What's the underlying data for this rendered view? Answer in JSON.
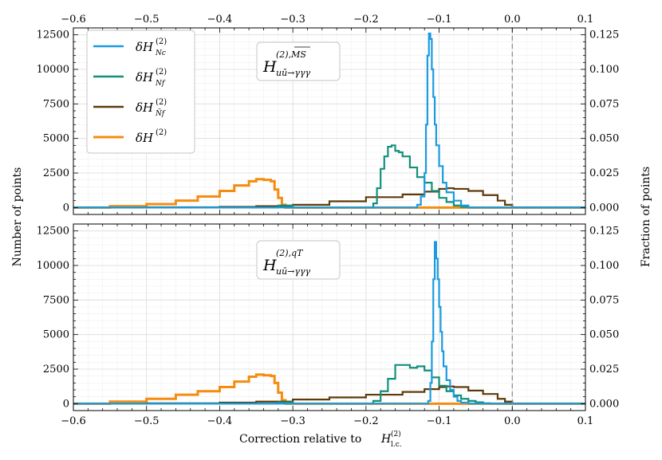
{
  "chart_data": {
    "type": "histogram",
    "xlabel": "Correction relative to H_l.c.^(2)",
    "xlabel_main": "Correction relative to ",
    "xlabel_sym": "H",
    "xlabel_sub": "l.c.",
    "xlabel_sup": "(2)",
    "ylabel": "Number of points",
    "ylabel_right": "Fraction of points",
    "xlim": [
      -0.6,
      0.1
    ],
    "x_ticks": [
      "−0.6",
      "−0.5",
      "−0.4",
      "−0.3",
      "−0.2",
      "−0.1",
      "0.0",
      "0.1"
    ],
    "x_tick_values": [
      -0.6,
      -0.5,
      -0.4,
      -0.3,
      -0.2,
      -0.1,
      0.0,
      0.1
    ],
    "ylim": [
      -500,
      13000
    ],
    "y_ticks": [
      "0",
      "2500",
      "5000",
      "7500",
      "10000",
      "12500"
    ],
    "y_tick_values": [
      0,
      2500,
      5000,
      7500,
      10000,
      12500
    ],
    "y_right_ticks": [
      "0.000",
      "0.025",
      "0.050",
      "0.075",
      "0.100",
      "0.125"
    ],
    "reference_line_x": 0.0,
    "legend": [
      {
        "key": "Nc",
        "label_main": "δH",
        "label_sup": "(2)",
        "label_sub": "Nc",
        "color": "#1a9be0"
      },
      {
        "key": "Nf",
        "label_main": "δH",
        "label_sup": "(2)",
        "label_sub": "Nf",
        "color": "#12907c"
      },
      {
        "key": "Nft",
        "label_main": "δH",
        "label_sup": "(2)",
        "label_sub": "Ñf",
        "color": "#5e3a0a"
      },
      {
        "key": "total",
        "label_main": "δH",
        "label_sup": "(2)",
        "label_sub": "",
        "color": "#f58c0f"
      }
    ],
    "panels": [
      {
        "name": "top",
        "annotation": {
          "main": "H",
          "sup": "(2),MS",
          "sub": "uū→γγγ"
        },
        "series": [
          {
            "key": "total",
            "name": "δH(2)",
            "x": [
              -0.6,
              -0.55,
              -0.5,
              -0.46,
              -0.43,
              -0.4,
              -0.38,
              -0.36,
              -0.35,
              -0.34,
              -0.33,
              -0.325,
              -0.32,
              -0.315,
              -0.31,
              -0.3,
              0.1
            ],
            "y": [
              0,
              100,
              250,
              500,
              800,
              1200,
              1600,
              1900,
              2050,
              2000,
              1900,
              1300,
              700,
              200,
              0,
              0,
              0
            ]
          },
          {
            "key": "Nft",
            "name": "δH(2) Ñf",
            "x": [
              -0.6,
              -0.5,
              -0.4,
              -0.35,
              -0.3,
              -0.25,
              -0.2,
              -0.15,
              -0.12,
              -0.1,
              -0.09,
              -0.08,
              -0.06,
              -0.04,
              -0.02,
              -0.01,
              0.0,
              0.1
            ],
            "y": [
              0,
              20,
              50,
              100,
              200,
              450,
              750,
              950,
              1150,
              1350,
              1400,
              1350,
              1200,
              900,
              500,
              200,
              0,
              0
            ]
          },
          {
            "key": "Nf",
            "name": "δH(2) Nf",
            "x": [
              -0.6,
              -0.35,
              -0.32,
              -0.3,
              -0.2,
              -0.19,
              -0.185,
              -0.18,
              -0.175,
              -0.17,
              -0.165,
              -0.16,
              -0.155,
              -0.15,
              -0.14,
              -0.13,
              -0.12,
              -0.11,
              -0.1,
              -0.09,
              -0.08,
              -0.07,
              -0.06,
              0.1
            ],
            "y": [
              0,
              0,
              150,
              0,
              0,
              300,
              1400,
              2800,
              3700,
              4400,
              4500,
              4100,
              4000,
              3700,
              2900,
              2200,
              1800,
              1200,
              700,
              400,
              150,
              50,
              0,
              0
            ]
          },
          {
            "key": "Nc",
            "name": "δH(2) Nc",
            "x": [
              -0.6,
              -0.14,
              -0.13,
              -0.125,
              -0.12,
              -0.118,
              -0.116,
              -0.114,
              -0.112,
              -0.11,
              -0.108,
              -0.106,
              -0.104,
              -0.1,
              -0.095,
              -0.09,
              -0.08,
              -0.07,
              -0.06,
              0.1
            ],
            "y": [
              0,
              0,
              200,
              800,
              2500,
              6000,
              11000,
              12600,
              12200,
              10000,
              8000,
              6000,
              4500,
              3000,
              1800,
              1100,
              500,
              150,
              0,
              0
            ]
          }
        ]
      },
      {
        "name": "bottom",
        "annotation": {
          "main": "H",
          "sup": "(2),qT",
          "sub": "uū→γγγ"
        },
        "series": [
          {
            "key": "total",
            "name": "δH(2)",
            "x": [
              -0.6,
              -0.55,
              -0.5,
              -0.46,
              -0.43,
              -0.4,
              -0.38,
              -0.36,
              -0.35,
              -0.34,
              -0.33,
              -0.325,
              -0.32,
              -0.315,
              -0.31,
              -0.3,
              0.1
            ],
            "y": [
              0,
              150,
              350,
              650,
              900,
              1200,
              1600,
              1950,
              2100,
              2050,
              2000,
              1500,
              800,
              250,
              0,
              0,
              0
            ]
          },
          {
            "key": "Nft",
            "name": "δH(2) Ñf",
            "x": [
              -0.6,
              -0.5,
              -0.4,
              -0.35,
              -0.3,
              -0.25,
              -0.2,
              -0.15,
              -0.12,
              -0.1,
              -0.09,
              -0.08,
              -0.06,
              -0.04,
              -0.02,
              -0.01,
              0.0,
              0.1
            ],
            "y": [
              0,
              30,
              80,
              150,
              300,
              450,
              650,
              850,
              1050,
              1200,
              1250,
              1200,
              950,
              700,
              350,
              150,
              0,
              0
            ]
          },
          {
            "key": "Nf",
            "name": "δH(2) Nf",
            "x": [
              -0.6,
              -0.35,
              -0.32,
              -0.3,
              -0.2,
              -0.19,
              -0.18,
              -0.17,
              -0.16,
              -0.15,
              -0.14,
              -0.13,
              -0.12,
              -0.11,
              -0.1,
              -0.09,
              -0.08,
              -0.07,
              -0.06,
              -0.05,
              -0.04,
              -0.03,
              0.1
            ],
            "y": [
              0,
              0,
              100,
              0,
              0,
              200,
              900,
              1800,
              2800,
              2800,
              2600,
              2700,
              2400,
              1900,
              1300,
              900,
              600,
              350,
              200,
              100,
              30,
              0,
              0
            ]
          },
          {
            "key": "Nc",
            "name": "δH(2) Nc",
            "x": [
              -0.6,
              -0.12,
              -0.115,
              -0.112,
              -0.11,
              -0.108,
              -0.106,
              -0.104,
              -0.102,
              -0.1,
              -0.098,
              -0.096,
              -0.094,
              -0.09,
              -0.085,
              -0.08,
              -0.075,
              -0.07,
              -0.06,
              0.1
            ],
            "y": [
              0,
              0,
              200,
              1500,
              4500,
              9000,
              11700,
              10500,
              9000,
              7000,
              5200,
              3800,
              2700,
              1700,
              1000,
              500,
              200,
              80,
              0,
              0
            ]
          }
        ]
      }
    ]
  }
}
